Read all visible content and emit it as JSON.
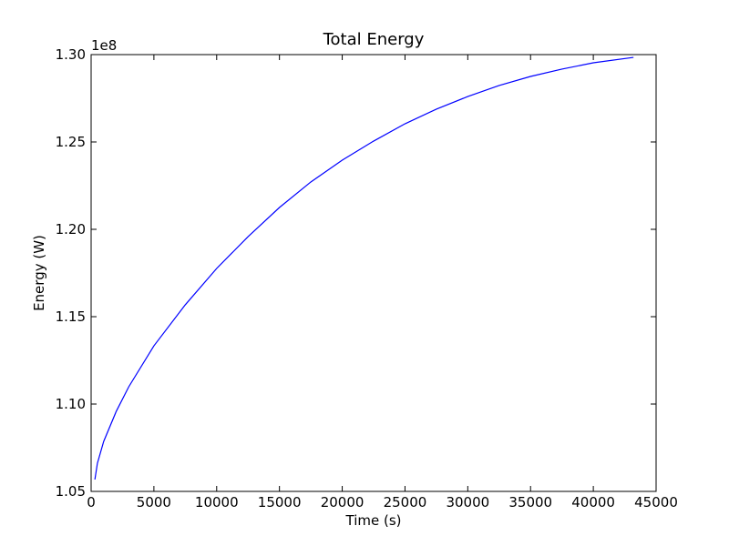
{
  "chart_data": {
    "type": "line",
    "title": "Total Energy",
    "x_label": "Time (s)",
    "y_label": "Energy (W)",
    "y_offset_label": "1e8",
    "x": [
      300,
      500,
      1000,
      2000,
      3000,
      5000,
      7500,
      10000,
      12500,
      15000,
      17500,
      20000,
      22500,
      25000,
      27500,
      30000,
      32500,
      35000,
      37500,
      40000,
      43200
    ],
    "series": [
      {
        "name": "Total Energy",
        "color": "#0000ff",
        "values": [
          105680000,
          106610000,
          107860000,
          109580000,
          110990000,
          113330000,
          115680000,
          117760000,
          119580000,
          121250000,
          122710000,
          123960000,
          125050000,
          126040000,
          126880000,
          127600000,
          128230000,
          128750000,
          129170000,
          129530000,
          129840000
        ]
      }
    ],
    "xlim": [
      0,
      45000
    ],
    "xticks": [
      0,
      5000,
      10000,
      15000,
      20000,
      25000,
      30000,
      35000,
      40000,
      45000
    ],
    "ylim": [
      105000000,
      130000000
    ],
    "yticks": [
      {
        "value": 105000000,
        "label": "1.05"
      },
      {
        "value": 110000000,
        "label": "1.10"
      },
      {
        "value": 115000000,
        "label": "1.15"
      },
      {
        "value": 120000000,
        "label": "1.20"
      },
      {
        "value": 125000000,
        "label": "1.25"
      },
      {
        "value": 130000000,
        "label": "1.30"
      }
    ],
    "grid": false
  }
}
